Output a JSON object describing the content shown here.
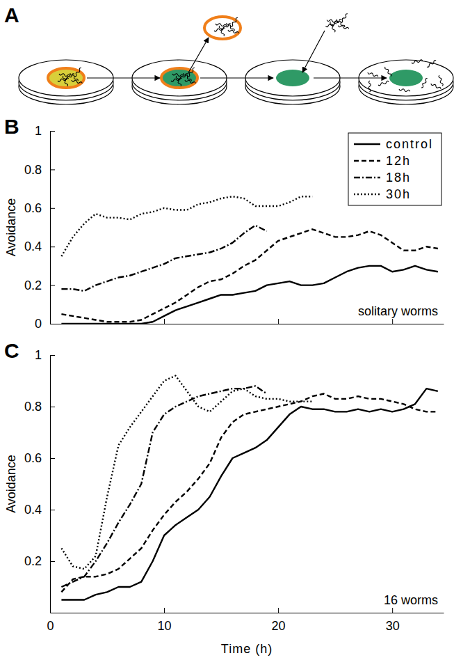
{
  "diagram": {
    "panel_label": "A"
  },
  "chart_data": [
    {
      "type": "line",
      "panel_label": "B",
      "ylabel": "Avoidance",
      "annotations": [
        "solitary worms"
      ],
      "x": [
        1,
        2,
        3,
        4,
        5,
        6,
        7,
        8,
        9,
        10,
        11,
        12,
        13,
        14,
        15,
        16,
        17,
        18,
        19,
        20,
        21,
        22,
        23,
        24,
        25,
        26,
        27,
        28,
        29,
        30,
        31,
        32,
        33,
        34
      ],
      "xlim": [
        0,
        34.5
      ],
      "xticks": [
        0,
        10,
        20,
        30
      ],
      "ylim": [
        0,
        1
      ],
      "yticks": [
        0,
        0.2,
        0.4,
        0.6,
        0.8,
        1
      ],
      "tick_labels": "y",
      "legend": "upper right",
      "series": [
        {
          "name": "control",
          "color": "#000000",
          "line_style": "solid",
          "values": [
            0,
            0,
            0,
            0,
            0,
            0,
            0,
            0,
            0.01,
            0.04,
            0.07,
            0.09,
            0.11,
            0.13,
            0.15,
            0.15,
            0.16,
            0.17,
            0.2,
            0.21,
            0.22,
            0.2,
            0.2,
            0.21,
            0.24,
            0.27,
            0.29,
            0.3,
            0.3,
            0.27,
            0.28,
            0.3,
            0.28,
            0.27
          ]
        },
        {
          "name": "12h",
          "color": "#000000",
          "line_style": "dashed",
          "values": [
            0.05,
            0.04,
            0.03,
            0.02,
            0.01,
            0.01,
            0.01,
            0.02,
            0.05,
            0.08,
            0.11,
            0.15,
            0.19,
            0.22,
            0.23,
            0.26,
            0.3,
            0.33,
            0.38,
            0.43,
            0.45,
            0.47,
            0.49,
            0.47,
            0.45,
            0.45,
            0.46,
            0.48,
            0.46,
            0.42,
            0.38,
            0.38,
            0.4,
            0.39
          ]
        },
        {
          "name": "18h",
          "color": "#000000",
          "line_style": "dashdot",
          "values": [
            0.18,
            0.18,
            0.17,
            0.2,
            0.22,
            0.24,
            0.25,
            0.27,
            0.29,
            0.31,
            0.34,
            0.35,
            0.36,
            0.37,
            0.39,
            0.42,
            0.47,
            0.51,
            0.48,
            null,
            null,
            null,
            null,
            null,
            null,
            null,
            null,
            null,
            null,
            null,
            null,
            null,
            null,
            null
          ]
        },
        {
          "name": "30h",
          "color": "#000000",
          "line_style": "dotted",
          "values": [
            0.35,
            0.45,
            0.52,
            0.57,
            0.55,
            0.55,
            0.54,
            0.57,
            0.58,
            0.6,
            0.59,
            0.59,
            0.62,
            0.63,
            0.65,
            0.66,
            0.65,
            0.61,
            0.61,
            0.61,
            0.63,
            0.66,
            0.66,
            null,
            null,
            null,
            null,
            null,
            null,
            null,
            null,
            null,
            null,
            null
          ]
        }
      ]
    },
    {
      "type": "line",
      "panel_label": "C",
      "ylabel": "Avoidance",
      "xlabel": "Time (h)",
      "annotations": [
        "16 worms"
      ],
      "x": [
        1,
        2,
        3,
        4,
        5,
        6,
        7,
        8,
        9,
        10,
        11,
        12,
        13,
        14,
        15,
        16,
        17,
        18,
        19,
        20,
        21,
        22,
        23,
        24,
        25,
        26,
        27,
        28,
        29,
        30,
        31,
        32,
        33,
        34
      ],
      "xlim": [
        0,
        34.5
      ],
      "xticks": [
        0,
        10,
        20,
        30
      ],
      "ylim": [
        0,
        1
      ],
      "yticks": [
        0.2,
        0.4,
        0.6,
        0.8,
        1
      ],
      "series": [
        {
          "color": "#000000",
          "line_style": "solid",
          "values": [
            0.05,
            0.05,
            0.05,
            0.07,
            0.08,
            0.1,
            0.1,
            0.12,
            0.2,
            0.3,
            0.34,
            0.37,
            0.4,
            0.45,
            0.53,
            0.6,
            0.62,
            0.64,
            0.67,
            0.72,
            0.77,
            0.8,
            0.79,
            0.79,
            0.78,
            0.78,
            0.79,
            0.78,
            0.79,
            0.78,
            0.79,
            0.81,
            0.87,
            0.86
          ]
        },
        {
          "color": "#000000",
          "line_style": "dashed",
          "values": [
            0.08,
            0.13,
            0.14,
            0.14,
            0.15,
            0.17,
            0.21,
            0.25,
            0.32,
            0.38,
            0.43,
            0.47,
            0.52,
            0.58,
            0.68,
            0.74,
            0.77,
            0.78,
            0.79,
            0.8,
            0.81,
            0.82,
            0.84,
            0.85,
            0.83,
            0.83,
            0.84,
            0.83,
            0.83,
            0.82,
            0.81,
            0.79,
            0.78,
            0.78
          ]
        },
        {
          "color": "#000000",
          "line_style": "dashdot",
          "values": [
            0.1,
            0.12,
            0.14,
            0.2,
            0.27,
            0.35,
            0.42,
            0.5,
            0.7,
            0.77,
            0.8,
            0.82,
            0.84,
            0.85,
            0.86,
            0.87,
            0.87,
            0.88,
            0.85,
            null,
            null,
            null,
            null,
            null,
            null,
            null,
            null,
            null,
            null,
            null,
            null,
            null,
            null,
            null
          ]
        },
        {
          "color": "#000000",
          "line_style": "dotted",
          "values": [
            0.25,
            0.18,
            0.17,
            0.22,
            0.45,
            0.65,
            0.72,
            0.78,
            0.84,
            0.9,
            0.92,
            0.86,
            0.8,
            0.78,
            0.82,
            0.86,
            0.87,
            0.84,
            0.83,
            0.83,
            0.82,
            0.82,
            0.82,
            null,
            null,
            null,
            null,
            null,
            null,
            null,
            null,
            null,
            null,
            null
          ]
        }
      ]
    }
  ]
}
